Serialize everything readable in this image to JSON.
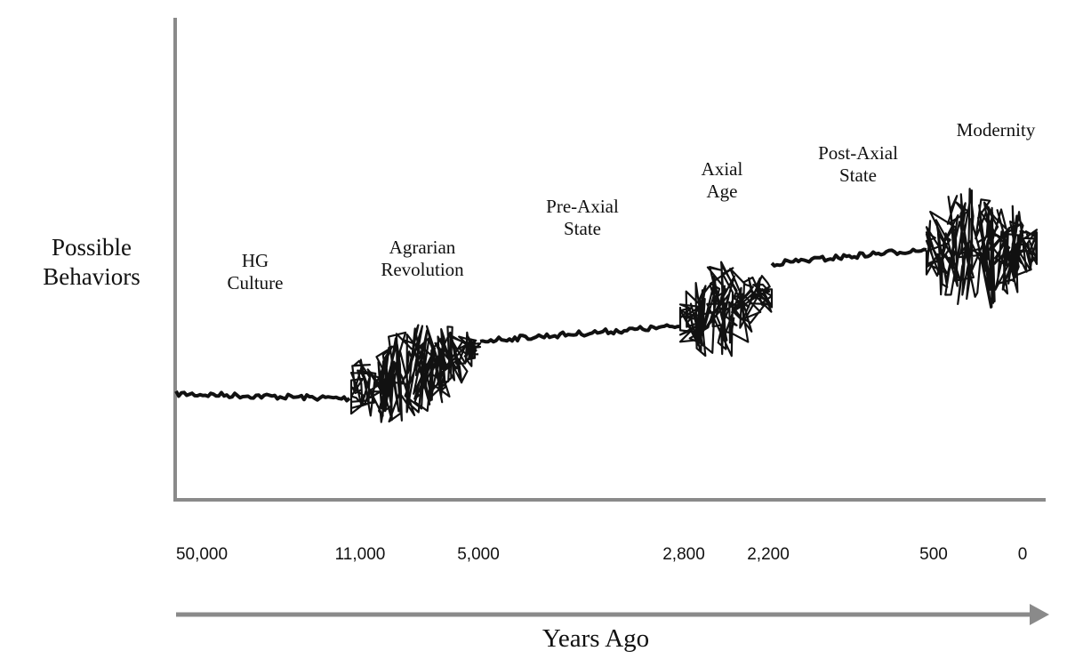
{
  "chart_data": {
    "type": "line",
    "title": "",
    "ylabel": [
      "Possible",
      "Behaviors"
    ],
    "xlabel": "Years Ago",
    "x_ticks": [
      "50,000",
      "11,000",
      "5,000",
      "2,800",
      "2,200",
      "500",
      "0"
    ],
    "ylim": [
      0,
      100
    ],
    "grid": false,
    "phases": [
      {
        "name": "hg-culture",
        "label": [
          "HG",
          "Culture"
        ],
        "from": "50,000",
        "to": "11,000",
        "start": 22,
        "end": 21,
        "variability": 1
      },
      {
        "name": "agrarian-revolution",
        "label": [
          "Agrarian",
          "Revolution"
        ],
        "from": "11,000",
        "to": "5,000",
        "start": 22,
        "end": 32,
        "variability": 10
      },
      {
        "name": "pre-axial-state",
        "label": [
          "Pre-Axial",
          "State"
        ],
        "from": "5,000",
        "to": "2,800",
        "start": 33,
        "end": 36,
        "variability": 1
      },
      {
        "name": "axial-age",
        "label": [
          "Axial",
          "Age"
        ],
        "from": "2,800",
        "to": "2,200",
        "start": 37,
        "end": 43,
        "variability": 10
      },
      {
        "name": "post-axial-state",
        "label": [
          "Post-Axial",
          "State"
        ],
        "from": "2,200",
        "to": "500",
        "start": 49,
        "end": 52,
        "variability": 1
      },
      {
        "name": "modernity",
        "label": [
          "Modernity"
        ],
        "from": "500",
        "to": "0",
        "start": 52,
        "end": 52,
        "variability": 13
      }
    ],
    "colors": {
      "axis": "#8a8a8a",
      "line": "#111111"
    }
  }
}
